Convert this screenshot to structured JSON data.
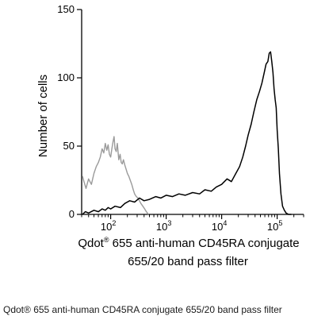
{
  "caption": "Qdot® 655 anti-human CD45RA conjugate 655/20 band pass filter",
  "chart_data": {
    "type": "line",
    "xscale": "log",
    "xlim": [
      30,
      300000
    ],
    "ylim": [
      0,
      150
    ],
    "ylabel": "Number of cells",
    "xlabel_line1_main": "Qdot",
    "xlabel_line1_sup": "®",
    "xlabel_line1_rest": " 655 anti-human CD45RA conjugate",
    "xlabel_line2": "655/20 band pass filter",
    "yticks": [
      {
        "value": 0,
        "label": "0"
      },
      {
        "value": 50,
        "label": "50"
      },
      {
        "value": 100,
        "label": "100"
      },
      {
        "value": 150,
        "label": "150"
      }
    ],
    "xticks": [
      {
        "value": 100,
        "base": "10",
        "exp": "2"
      },
      {
        "value": 1000,
        "base": "10",
        "exp": "3"
      },
      {
        "value": 10000,
        "base": "10",
        "exp": "4"
      },
      {
        "value": 100000,
        "base": "10",
        "exp": "5"
      }
    ],
    "series": [
      {
        "color": "#9a9a9a",
        "x": [
          31,
          33,
          36,
          40,
          45,
          50,
          55,
          60,
          65,
          70,
          75,
          80,
          85,
          90,
          95,
          100,
          105,
          110,
          115,
          120,
          126,
          132,
          140,
          148,
          155,
          162,
          170,
          180,
          190,
          200,
          212,
          225,
          240,
          255,
          270,
          290,
          310,
          330,
          350,
          380,
          410,
          440,
          480
        ],
        "y": [
          28,
          24,
          19,
          26,
          22,
          30,
          35,
          38,
          42,
          48,
          45,
          52,
          47,
          51,
          44,
          42,
          48,
          53,
          57,
          48,
          46,
          52,
          40,
          44,
          38,
          37,
          40,
          36,
          33,
          30,
          28,
          25,
          22,
          18,
          15,
          13,
          12,
          10,
          8,
          6,
          4,
          2,
          0
        ]
      },
      {
        "color": "#000000",
        "x": [
          31,
          35,
          40,
          50,
          60,
          70,
          80,
          90,
          100,
          120,
          150,
          180,
          220,
          270,
          330,
          400,
          500,
          650,
          800,
          1000,
          1300,
          1700,
          2200,
          3000,
          4000,
          5000,
          6500,
          8000,
          10000,
          12500,
          15000,
          18000,
          21000,
          24000,
          27000,
          30000,
          34000,
          38000,
          43000,
          48000,
          53000,
          58000,
          63000,
          68000,
          72000,
          76000,
          80000,
          84000,
          88000,
          92000,
          96000,
          100000,
          105000,
          110000,
          117000,
          125000,
          135000,
          145000,
          160000,
          180000
        ],
        "y": [
          0,
          2,
          1,
          3,
          2,
          4,
          3,
          5,
          4,
          6,
          5,
          8,
          10,
          9,
          12,
          10,
          11,
          13,
          12,
          14,
          13,
          15,
          14,
          16,
          15,
          18,
          17,
          20,
          22,
          26,
          24,
          30,
          35,
          42,
          50,
          58,
          66,
          75,
          84,
          90,
          96,
          103,
          110,
          112,
          118,
          119,
          112,
          104,
          92,
          84,
          78,
          62,
          48,
          30,
          15,
          6,
          3,
          1,
          0,
          0
        ]
      }
    ]
  }
}
